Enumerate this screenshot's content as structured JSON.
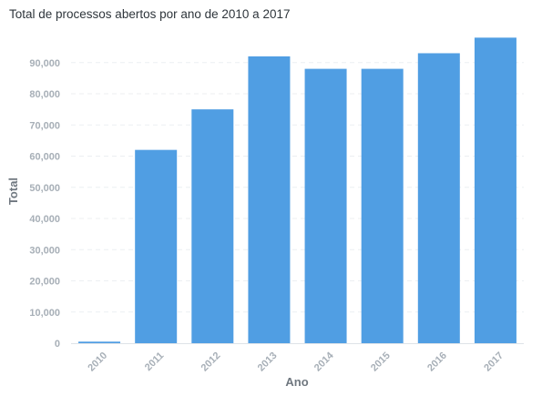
{
  "chart_data": {
    "type": "bar",
    "title": "Total de processos abertos por ano de 2010 a 2017",
    "xlabel": "Ano",
    "ylabel": "Total",
    "categories": [
      "2010",
      "2011",
      "2012",
      "2013",
      "2014",
      "2015",
      "2016",
      "2017"
    ],
    "values": [
      500,
      62000,
      75000,
      92000,
      88000,
      88000,
      93000,
      98000
    ],
    "ylim": [
      0,
      98000
    ],
    "yticks": [
      0,
      10000,
      20000,
      30000,
      40000,
      50000,
      60000,
      70000,
      80000,
      90000
    ],
    "ytick_labels": [
      "0",
      "10,000",
      "20,000",
      "30,000",
      "40,000",
      "50,000",
      "60,000",
      "70,000",
      "80,000",
      "90,000"
    ],
    "grid": true,
    "legend": "none",
    "colors": {
      "bar": "#509ee3",
      "tick_text": "#a7afb7",
      "axis_title": "#6f777f",
      "title_text": "#2e353b"
    }
  }
}
